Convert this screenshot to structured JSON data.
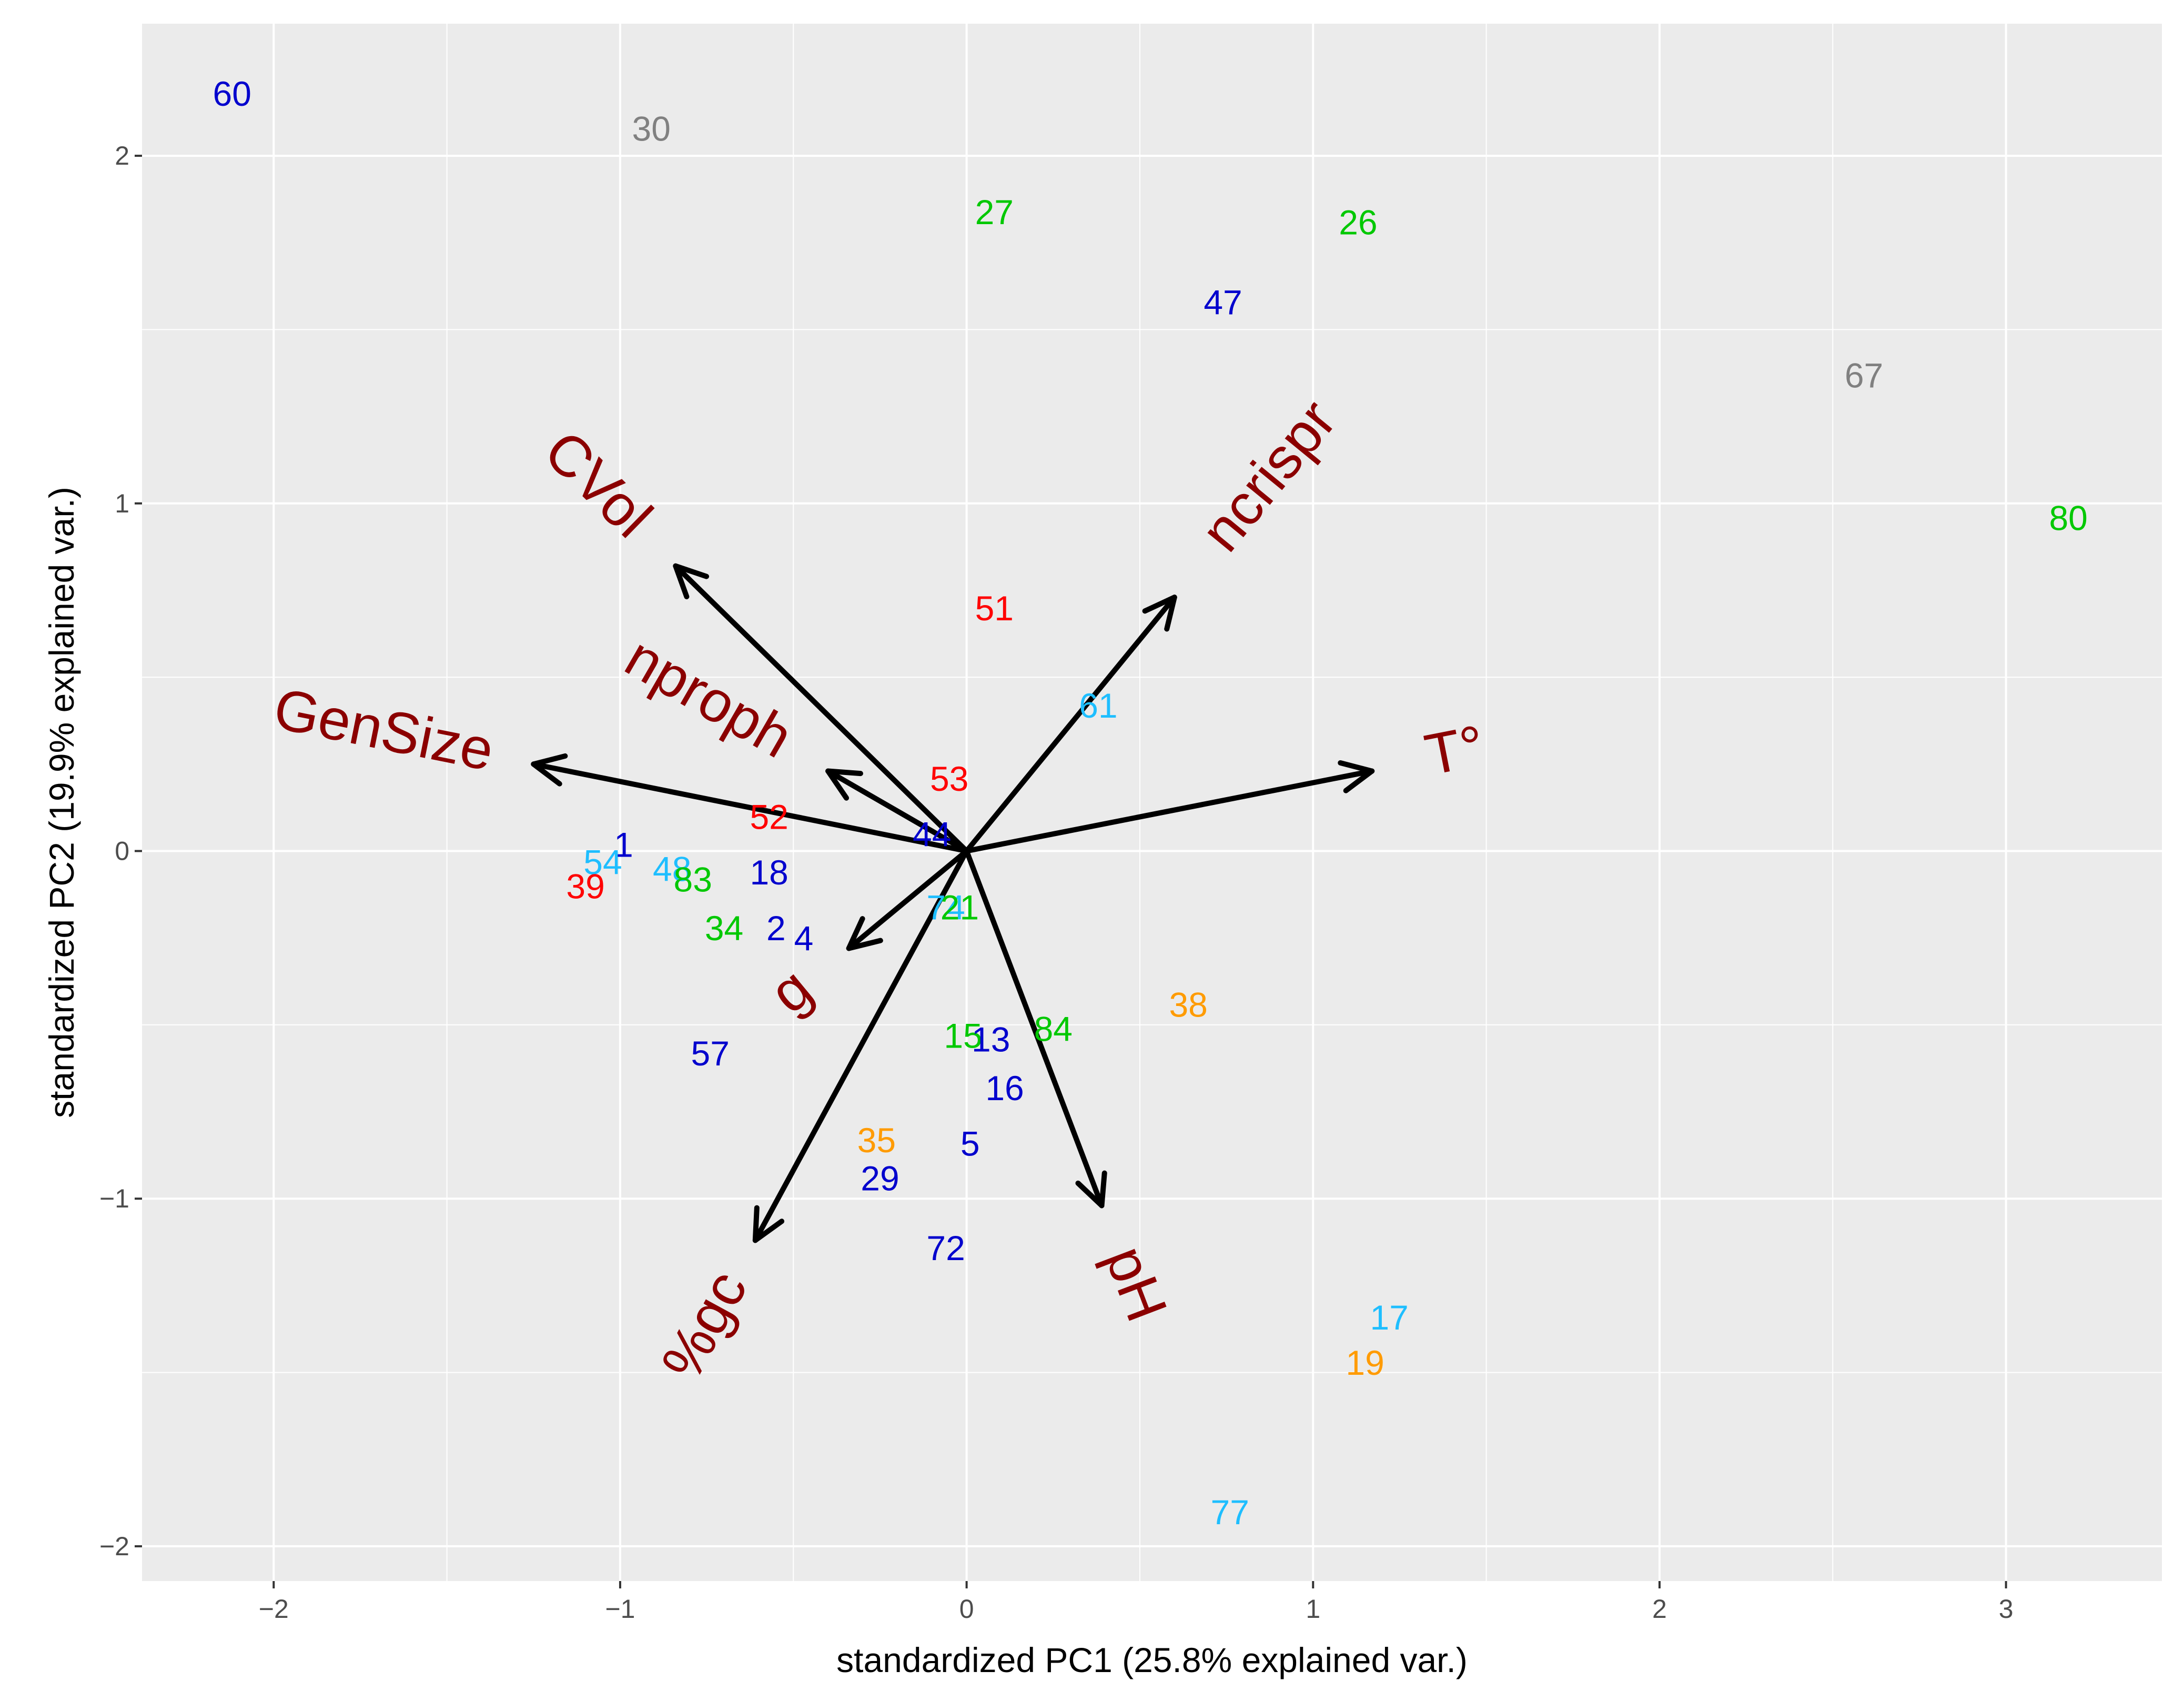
{
  "chart_data": {
    "type": "scatter",
    "subtype": "pca-biplot",
    "xlabel": "standardized PC1 (25.8% explained var.)",
    "ylabel": "standardized PC2 (19.9% explained var.)",
    "xlim": [
      -2.38,
      3.45
    ],
    "ylim": [
      -2.1,
      2.38
    ],
    "x_ticks": [
      -2,
      -1,
      0,
      1,
      2,
      3
    ],
    "x_tick_labels": [
      "−2",
      "−1",
      "0",
      "1",
      "2",
      "3"
    ],
    "y_ticks": [
      -2,
      -1,
      0,
      1,
      2
    ],
    "y_tick_labels": [
      "−2",
      "−1",
      "0",
      "1",
      "2"
    ],
    "panel_background": "#ebebeb",
    "grid_color": "#ffffff",
    "grid": true,
    "points": [
      {
        "label": "60",
        "x": -2.12,
        "y": 2.17,
        "color": "#0000cd"
      },
      {
        "label": "30",
        "x": -0.91,
        "y": 2.07,
        "color": "#808080"
      },
      {
        "label": "27",
        "x": 0.08,
        "y": 1.83,
        "color": "#00c800"
      },
      {
        "label": "26",
        "x": 1.13,
        "y": 1.8,
        "color": "#00c800"
      },
      {
        "label": "47",
        "x": 0.74,
        "y": 1.57,
        "color": "#0000cd"
      },
      {
        "label": "67",
        "x": 2.59,
        "y": 1.36,
        "color": "#808080"
      },
      {
        "label": "80",
        "x": 3.18,
        "y": 0.95,
        "color": "#00c800"
      },
      {
        "label": "51",
        "x": 0.08,
        "y": 0.69,
        "color": "#ff0000"
      },
      {
        "label": "61",
        "x": 0.38,
        "y": 0.41,
        "color": "#1ebeff"
      },
      {
        "label": "53",
        "x": -0.05,
        "y": 0.2,
        "color": "#ff0000"
      },
      {
        "label": "52",
        "x": -0.57,
        "y": 0.09,
        "color": "#ff0000"
      },
      {
        "label": "44",
        "x": -0.1,
        "y": 0.04,
        "color": "#0000cd"
      },
      {
        "label": "1",
        "x": -0.99,
        "y": 0.01,
        "color": "#0000cd"
      },
      {
        "label": "54",
        "x": -1.05,
        "y": -0.04,
        "color": "#1ebeff"
      },
      {
        "label": "48",
        "x": -0.85,
        "y": -0.06,
        "color": "#1ebeff"
      },
      {
        "label": "83",
        "x": -0.79,
        "y": -0.09,
        "color": "#00c800"
      },
      {
        "label": "39",
        "x": -1.1,
        "y": -0.11,
        "color": "#ff0000"
      },
      {
        "label": "18",
        "x": -0.57,
        "y": -0.07,
        "color": "#0000cd"
      },
      {
        "label": "74",
        "x": -0.06,
        "y": -0.17,
        "color": "#1ebeff"
      },
      {
        "label": "21",
        "x": -0.02,
        "y": -0.17,
        "color": "#00c800"
      },
      {
        "label": "34",
        "x": -0.7,
        "y": -0.23,
        "color": "#00c800"
      },
      {
        "label": "2",
        "x": -0.55,
        "y": -0.23,
        "color": "#0000cd"
      },
      {
        "label": "4",
        "x": -0.47,
        "y": -0.26,
        "color": "#0000cd"
      },
      {
        "label": "38",
        "x": 0.64,
        "y": -0.45,
        "color": "#ff9b00"
      },
      {
        "label": "84",
        "x": 0.25,
        "y": -0.52,
        "color": "#00c800"
      },
      {
        "label": "15",
        "x": -0.01,
        "y": -0.54,
        "color": "#00c800"
      },
      {
        "label": "13",
        "x": 0.07,
        "y": -0.55,
        "color": "#0000cd"
      },
      {
        "label": "57",
        "x": -0.74,
        "y": -0.59,
        "color": "#0000cd"
      },
      {
        "label": "16",
        "x": 0.11,
        "y": -0.69,
        "color": "#0000cd"
      },
      {
        "label": "35",
        "x": -0.26,
        "y": -0.84,
        "color": "#ff9b00"
      },
      {
        "label": "5",
        "x": 0.01,
        "y": -0.85,
        "color": "#0000cd"
      },
      {
        "label": "29",
        "x": -0.25,
        "y": -0.95,
        "color": "#0000cd"
      },
      {
        "label": "72",
        "x": -0.06,
        "y": -1.15,
        "color": "#0000cd"
      },
      {
        "label": "17",
        "x": 1.22,
        "y": -1.35,
        "color": "#1ebeff"
      },
      {
        "label": "19",
        "x": 1.15,
        "y": -1.48,
        "color": "#ff9b00"
      },
      {
        "label": "77",
        "x": 0.76,
        "y": -1.91,
        "color": "#1ebeff"
      }
    ],
    "loadings": [
      {
        "label": "CVol",
        "x": -0.84,
        "y": 0.82
      },
      {
        "label": "ncrispr",
        "x": 0.6,
        "y": 0.73
      },
      {
        "label": "nproph",
        "x": -0.4,
        "y": 0.23
      },
      {
        "label": "GenSize",
        "x": -1.25,
        "y": 0.25
      },
      {
        "label": "T°",
        "x": 1.17,
        "y": 0.23
      },
      {
        "label": "g",
        "x": -0.34,
        "y": -0.28
      },
      {
        "label": "%gc",
        "x": -0.61,
        "y": -1.12
      },
      {
        "label": "pH",
        "x": 0.39,
        "y": -1.02
      }
    ],
    "loading_label_color": "#8b0000",
    "arrow_color": "#000000"
  }
}
